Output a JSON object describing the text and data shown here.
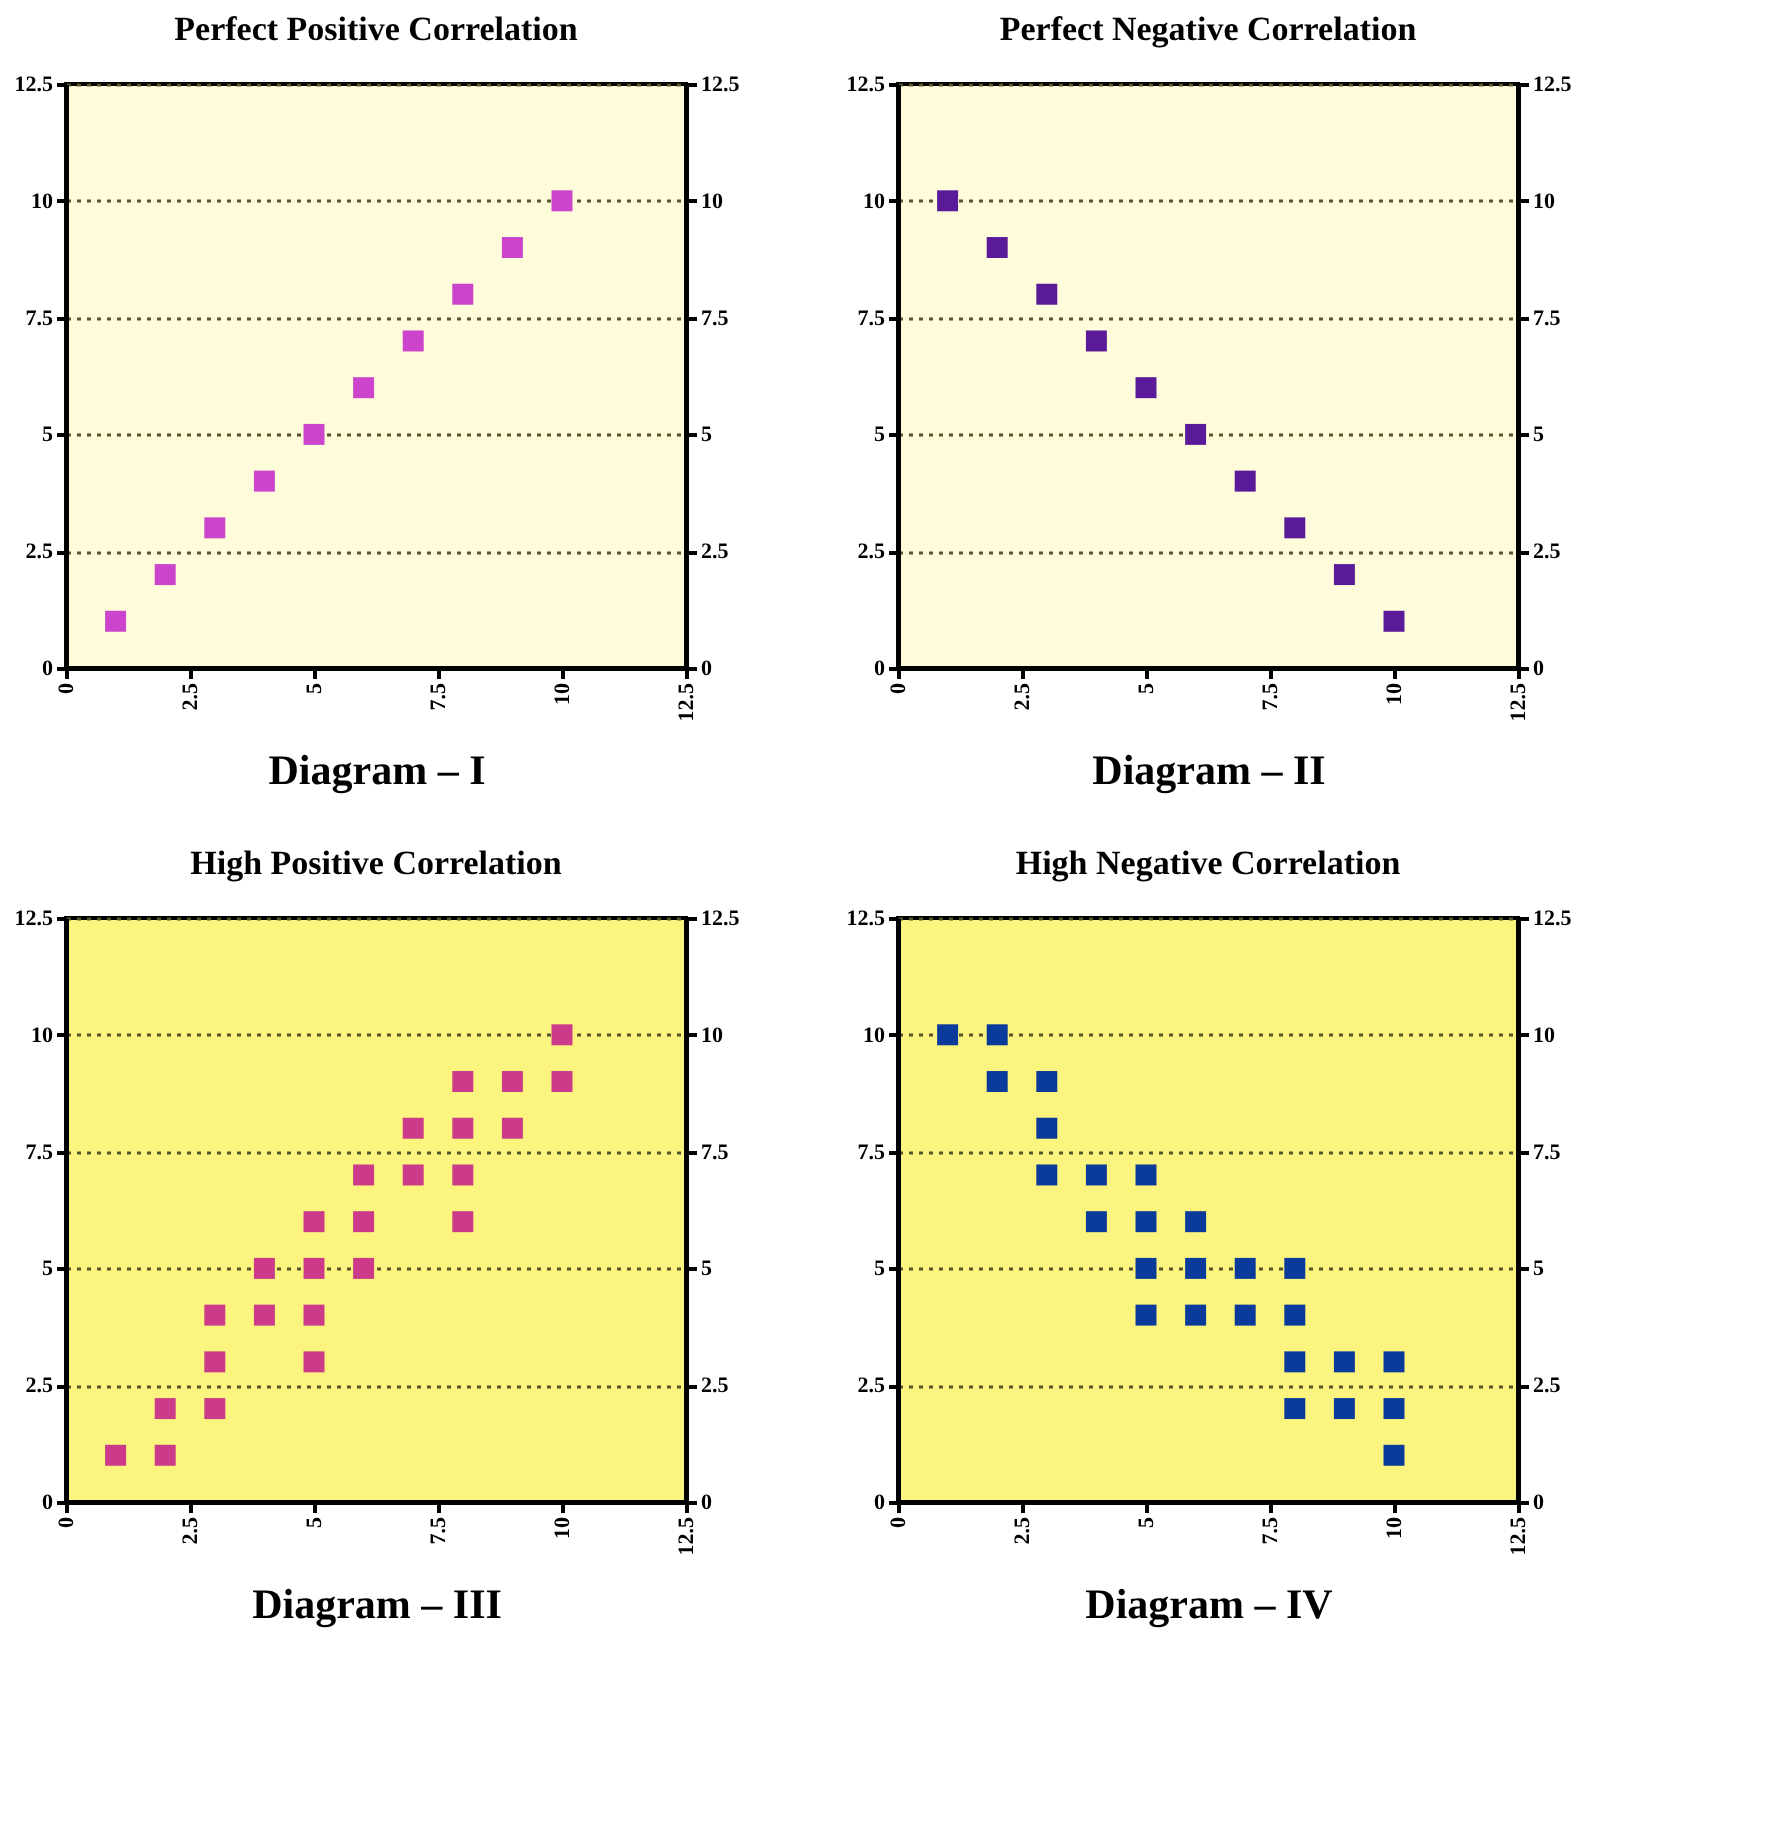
{
  "chart_data": [
    {
      "type": "scatter",
      "title": "Perfect Positive Correlation",
      "xlabel": "Diagram – I",
      "marker": "square",
      "grid": "y",
      "xlim": [
        0,
        12.5
      ],
      "xticks": [
        0,
        2.5,
        5,
        7.5,
        10,
        12.5
      ],
      "ylim": [
        0,
        12.5
      ],
      "yticks": [
        0,
        2.5,
        5,
        7.5,
        10,
        12.5
      ],
      "y2lim": [
        0,
        12.5
      ],
      "y2ticks": [
        0,
        2.5,
        5,
        7.5,
        10,
        12.5
      ],
      "series": [
        {
          "color": "#cc44cc",
          "x": [
            1,
            2,
            3,
            4,
            5,
            6,
            7,
            8,
            9,
            10
          ],
          "values": [
            1,
            2,
            3,
            4,
            5,
            6,
            7,
            8,
            9,
            10
          ]
        }
      ]
    },
    {
      "type": "scatter",
      "title": "Perfect Negative Correlation",
      "xlabel": "Diagram – II",
      "marker": "square",
      "grid": "y",
      "xlim": [
        0,
        12.5
      ],
      "xticks": [
        0,
        2.5,
        5,
        7.5,
        10,
        12.5
      ],
      "ylim": [
        0,
        12.5
      ],
      "yticks": [
        0,
        2.5,
        5,
        7.5,
        10,
        12.5
      ],
      "y2lim": [
        0,
        12.5
      ],
      "y2ticks": [
        0,
        2.5,
        5,
        7.5,
        10,
        12.5
      ],
      "series": [
        {
          "color": "#5a1a9a",
          "x": [
            1,
            2,
            3,
            4,
            5,
            6,
            7,
            8,
            9,
            10
          ],
          "values": [
            10,
            9,
            8,
            7,
            6,
            5,
            4,
            3,
            2,
            1
          ]
        }
      ]
    },
    {
      "type": "scatter",
      "title": "High Positive Correlation",
      "xlabel": "Diagram – III",
      "marker": "square",
      "grid": "y",
      "xlim": [
        0,
        12.5
      ],
      "xticks": [
        0,
        2.5,
        5,
        7.5,
        10,
        12.5
      ],
      "ylim": [
        0,
        12.5
      ],
      "yticks": [
        0,
        2.5,
        5,
        7.5,
        10,
        12.5
      ],
      "y2lim": [
        0,
        12.5
      ],
      "y2ticks": [
        0,
        2.5,
        5,
        7.5,
        10,
        12.5
      ],
      "series": [
        {
          "color": "#cc3a8a",
          "x": [
            1,
            2,
            2,
            3,
            3,
            3,
            4,
            4,
            5,
            5,
            5,
            5,
            6,
            6,
            6,
            7,
            7,
            8,
            8,
            8,
            8,
            9,
            9,
            10,
            10
          ],
          "values": [
            1,
            1,
            2,
            2,
            3,
            4,
            4,
            5,
            3,
            4,
            5,
            6,
            5,
            6,
            7,
            7,
            8,
            6,
            7,
            8,
            9,
            8,
            9,
            9,
            10
          ]
        }
      ]
    },
    {
      "type": "scatter",
      "title": "High Negative Correlation",
      "xlabel": "Diagram – IV",
      "marker": "square",
      "grid": "y",
      "xlim": [
        0,
        12.5
      ],
      "xticks": [
        0,
        2.5,
        5,
        7.5,
        10,
        12.5
      ],
      "ylim": [
        0,
        12.5
      ],
      "yticks": [
        0,
        2.5,
        5,
        7.5,
        10,
        12.5
      ],
      "y2lim": [
        0,
        12.5
      ],
      "y2ticks": [
        0,
        2.5,
        5,
        7.5,
        10,
        12.5
      ],
      "series": [
        {
          "color": "#0a3a9a",
          "x": [
            1,
            2,
            2,
            3,
            3,
            3,
            4,
            4,
            5,
            5,
            5,
            5,
            6,
            6,
            6,
            7,
            7,
            8,
            8,
            8,
            8,
            9,
            9,
            10,
            10,
            10
          ],
          "values": [
            10,
            10,
            9,
            9,
            8,
            7,
            7,
            6,
            7,
            6,
            5,
            4,
            6,
            5,
            4,
            5,
            4,
            5,
            4,
            3,
            2,
            3,
            2,
            3,
            2,
            1
          ]
        }
      ]
    }
  ]
}
